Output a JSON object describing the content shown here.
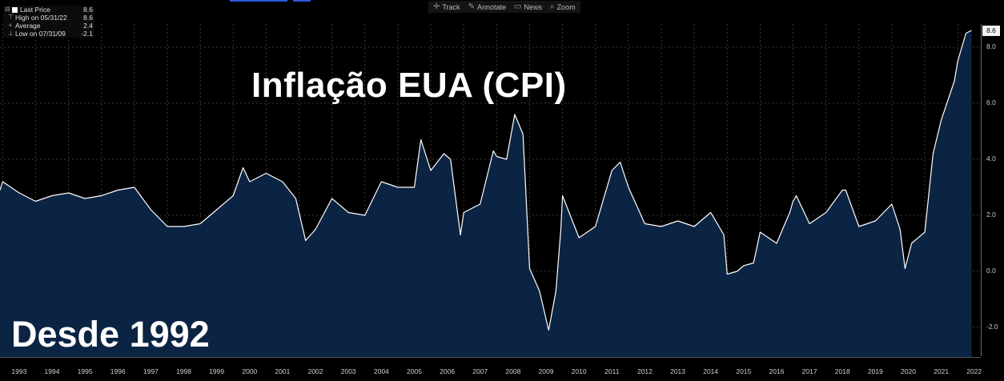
{
  "toolbar": {
    "track_label": "Track",
    "annotate_label": "Annotate",
    "news_label": "News",
    "zoom_label": "Zoom"
  },
  "legend": {
    "last_price_label": "Last Price",
    "last_price_value": "8.6",
    "high_label": "High on 05/31/22",
    "high_value": "8.6",
    "average_label": "Average",
    "average_value": "2.4",
    "low_label": "Low on 07/31/09",
    "low_value": "-2.1"
  },
  "title": "Inflação EUA (CPI)",
  "since_label": "Desde 1992",
  "last_price_tag": "8.6",
  "colors": {
    "background": "#000000",
    "line": "#ffffff",
    "area_fill": "#0c2443",
    "grid": "#4a4a4a",
    "accent": "#2a5ad8"
  },
  "chart_data": {
    "type": "area",
    "title": "Inflação EUA (CPI)",
    "xlabel": "",
    "ylabel": "",
    "ylim": [
      -3,
      9
    ],
    "y_axis_side": "right",
    "y_ticks": [
      -2,
      0,
      2,
      4,
      6,
      8
    ],
    "y_tick_labels": [
      "-2.0",
      "0.0",
      "2.0",
      "4.0",
      "6.0",
      "8.0"
    ],
    "x_tick_labels": [
      "1993",
      "1994",
      "1995",
      "1996",
      "1997",
      "1998",
      "1999",
      "2000",
      "2001",
      "2002",
      "2003",
      "2004",
      "2005",
      "2006",
      "2007",
      "2008",
      "2009",
      "2010",
      "2011",
      "2012",
      "2013",
      "2014",
      "2015",
      "2016",
      "2017",
      "2018",
      "2019",
      "2020",
      "2021",
      "2022"
    ],
    "grid": true,
    "series": [
      {
        "name": "Last Price",
        "x": [
          1992.92,
          1993.0,
          1993.5,
          1994.0,
          1994.5,
          1995.0,
          1995.5,
          1996.0,
          1996.5,
          1997.0,
          1997.5,
          1998.0,
          1998.5,
          1999.0,
          1999.5,
          2000.0,
          2000.3,
          2000.5,
          2001.0,
          2001.5,
          2001.9,
          2002.2,
          2002.5,
          2003.0,
          2003.5,
          2004.0,
          2004.5,
          2005.0,
          2005.5,
          2005.7,
          2006.0,
          2006.4,
          2006.6,
          2006.9,
          2007.0,
          2007.5,
          2007.9,
          2008.0,
          2008.3,
          2008.55,
          2008.8,
          2009.0,
          2009.3,
          2009.58,
          2009.8,
          2009.95,
          2010.0,
          2010.5,
          2011.0,
          2011.5,
          2011.75,
          2012.0,
          2012.5,
          2013.0,
          2013.5,
          2014.0,
          2014.5,
          2014.9,
          2015.0,
          2015.3,
          2015.5,
          2015.8,
          2016.0,
          2016.5,
          2016.9,
          2017.0,
          2017.1,
          2017.5,
          2018.0,
          2018.5,
          2018.6,
          2019.0,
          2019.5,
          2020.0,
          2020.25,
          2020.4,
          2020.6,
          2021.0,
          2021.25,
          2021.5,
          2021.9,
          2022.0,
          2022.25,
          2022.42
        ],
        "values": [
          2.9,
          3.2,
          2.8,
          2.5,
          2.7,
          2.8,
          2.6,
          2.7,
          2.9,
          3.0,
          2.2,
          1.6,
          1.6,
          1.7,
          2.2,
          2.7,
          3.7,
          3.2,
          3.5,
          3.2,
          2.6,
          1.1,
          1.5,
          2.6,
          2.1,
          2.0,
          3.2,
          3.0,
          3.0,
          4.7,
          3.6,
          4.2,
          4.0,
          1.3,
          2.1,
          2.4,
          4.3,
          4.1,
          4.0,
          5.6,
          4.9,
          0.1,
          -0.7,
          -2.1,
          -0.7,
          1.5,
          2.7,
          1.2,
          1.6,
          3.6,
          3.9,
          3.0,
          1.7,
          1.6,
          1.8,
          1.6,
          2.1,
          1.3,
          -0.1,
          0.0,
          0.2,
          0.3,
          1.4,
          1.0,
          2.1,
          2.5,
          2.7,
          1.7,
          2.1,
          2.9,
          2.9,
          1.6,
          1.8,
          2.4,
          1.5,
          0.1,
          1.0,
          1.4,
          4.2,
          5.4,
          6.8,
          7.5,
          8.5,
          8.6
        ]
      }
    ]
  }
}
